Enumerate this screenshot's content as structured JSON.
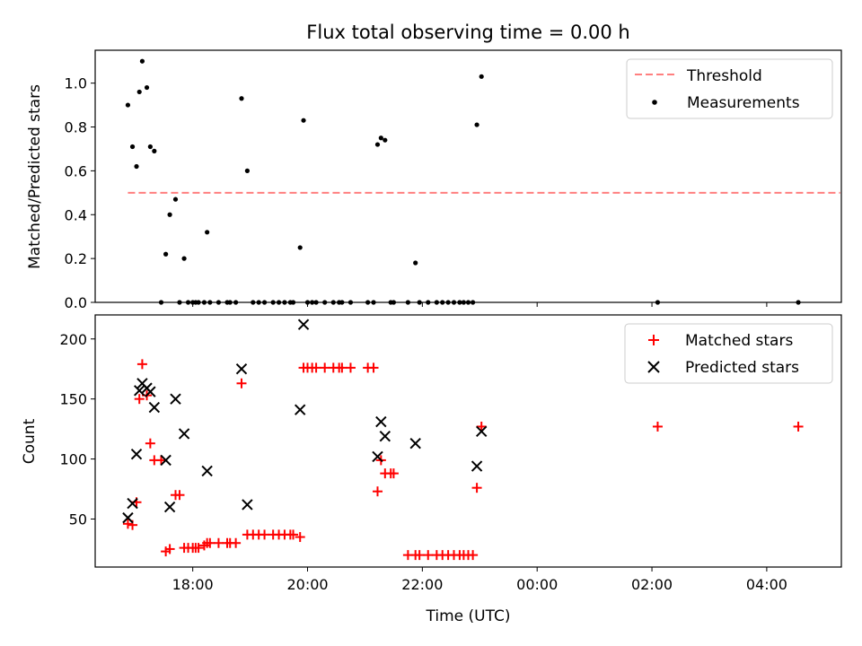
{
  "chart_data": [
    {
      "type": "scatter",
      "title": "Flux total observing time = 0.00 h",
      "xlabel": "",
      "ylabel": "Matched/Predicted stars",
      "x_unit": "hours of day (UTC), continuing past midnight",
      "xlim": [
        16.3,
        29.3
      ],
      "ylim": [
        0,
        1.15
      ],
      "yticks": [
        0.0,
        0.2,
        0.4,
        0.6,
        0.8,
        1.0
      ],
      "ytick_labels": [
        "0.0",
        "0.2",
        "0.4",
        "0.6",
        "0.8",
        "1.0"
      ],
      "legend_position": "top-right",
      "threshold": {
        "name": "Threshold",
        "color": "#ff7f7f",
        "style": "dashed",
        "y": 0.5,
        "x_range": [
          16.87,
          29.28
        ]
      },
      "series": [
        {
          "name": "Measurements",
          "color": "#000000",
          "marker": "dot",
          "points": [
            [
              16.87,
              0.9
            ],
            [
              16.95,
              0.71
            ],
            [
              17.02,
              0.62
            ],
            [
              17.07,
              0.96
            ],
            [
              17.12,
              1.1
            ],
            [
              17.2,
              0.98
            ],
            [
              17.26,
              0.71
            ],
            [
              17.33,
              0.69
            ],
            [
              17.45,
              0.0
            ],
            [
              17.53,
              0.22
            ],
            [
              17.6,
              0.4
            ],
            [
              17.7,
              0.47
            ],
            [
              17.77,
              0.0
            ],
            [
              17.85,
              0.2
            ],
            [
              17.92,
              0.0
            ],
            [
              18.0,
              0.0
            ],
            [
              18.05,
              0.0
            ],
            [
              18.1,
              0.0
            ],
            [
              18.2,
              0.0
            ],
            [
              18.25,
              0.32
            ],
            [
              18.3,
              0.0
            ],
            [
              18.45,
              0.0
            ],
            [
              18.6,
              0.0
            ],
            [
              18.65,
              0.0
            ],
            [
              18.75,
              0.0
            ],
            [
              18.85,
              0.93
            ],
            [
              18.95,
              0.6
            ],
            [
              19.05,
              0.0
            ],
            [
              19.15,
              0.0
            ],
            [
              19.25,
              0.0
            ],
            [
              19.4,
              0.0
            ],
            [
              19.5,
              0.0
            ],
            [
              19.6,
              0.0
            ],
            [
              19.7,
              0.0
            ],
            [
              19.75,
              0.0
            ],
            [
              19.87,
              0.25
            ],
            [
              19.93,
              0.83
            ],
            [
              20.0,
              0.0
            ],
            [
              20.08,
              0.0
            ],
            [
              20.15,
              0.0
            ],
            [
              20.3,
              0.0
            ],
            [
              20.45,
              0.0
            ],
            [
              20.55,
              0.0
            ],
            [
              20.6,
              0.0
            ],
            [
              20.75,
              0.0
            ],
            [
              21.05,
              0.0
            ],
            [
              21.15,
              0.0
            ],
            [
              21.22,
              0.72
            ],
            [
              21.28,
              0.75
            ],
            [
              21.35,
              0.74
            ],
            [
              21.45,
              0.0
            ],
            [
              21.5,
              0.0
            ],
            [
              21.75,
              0.0
            ],
            [
              21.88,
              0.18
            ],
            [
              21.95,
              0.0
            ],
            [
              22.1,
              0.0
            ],
            [
              22.25,
              0.0
            ],
            [
              22.35,
              0.0
            ],
            [
              22.45,
              0.0
            ],
            [
              22.55,
              0.0
            ],
            [
              22.65,
              0.0
            ],
            [
              22.72,
              0.0
            ],
            [
              22.8,
              0.0
            ],
            [
              22.88,
              0.0
            ],
            [
              22.95,
              0.81
            ],
            [
              23.03,
              1.03
            ],
            [
              26.1,
              0.0
            ],
            [
              28.55,
              0.0
            ]
          ]
        }
      ]
    },
    {
      "type": "scatter",
      "title": "",
      "xlabel": "Time (UTC)",
      "ylabel": "Count",
      "x_unit": "hours of day (UTC), continuing past midnight",
      "xlim": [
        16.3,
        29.3
      ],
      "ylim": [
        10,
        220
      ],
      "yticks": [
        50,
        100,
        150,
        200
      ],
      "ytick_labels": [
        "50",
        "100",
        "150",
        "200"
      ],
      "xticks": [
        18,
        20,
        22,
        24,
        26,
        28
      ],
      "xtick_labels": [
        "18:00",
        "20:00",
        "22:00",
        "00:00",
        "02:00",
        "04:00"
      ],
      "legend_position": "top-right",
      "series": [
        {
          "name": "Matched stars",
          "color": "#ff0000",
          "marker": "plus",
          "points": [
            [
              16.87,
              46
            ],
            [
              16.95,
              45
            ],
            [
              17.02,
              64
            ],
            [
              17.07,
              150
            ],
            [
              17.12,
              179
            ],
            [
              17.2,
              153
            ],
            [
              17.26,
              113
            ],
            [
              17.33,
              99
            ],
            [
              17.45,
              99
            ],
            [
              17.53,
              23
            ],
            [
              17.6,
              25
            ],
            [
              17.7,
              70
            ],
            [
              17.77,
              70
            ],
            [
              17.85,
              26
            ],
            [
              17.92,
              26
            ],
            [
              18.0,
              26
            ],
            [
              18.05,
              26
            ],
            [
              18.1,
              26
            ],
            [
              18.2,
              28
            ],
            [
              18.25,
              30
            ],
            [
              18.3,
              30
            ],
            [
              18.45,
              30
            ],
            [
              18.6,
              30
            ],
            [
              18.65,
              30
            ],
            [
              18.75,
              30
            ],
            [
              18.85,
              163
            ],
            [
              18.95,
              37
            ],
            [
              19.05,
              37
            ],
            [
              19.15,
              37
            ],
            [
              19.25,
              37
            ],
            [
              19.4,
              37
            ],
            [
              19.5,
              37
            ],
            [
              19.6,
              37
            ],
            [
              19.7,
              37
            ],
            [
              19.75,
              37
            ],
            [
              19.87,
              35
            ],
            [
              19.93,
              176
            ],
            [
              20.0,
              176
            ],
            [
              20.08,
              176
            ],
            [
              20.15,
              176
            ],
            [
              20.3,
              176
            ],
            [
              20.45,
              176
            ],
            [
              20.55,
              176
            ],
            [
              20.6,
              176
            ],
            [
              20.75,
              176
            ],
            [
              21.05,
              176
            ],
            [
              21.15,
              176
            ],
            [
              21.22,
              73
            ],
            [
              21.28,
              99
            ],
            [
              21.35,
              88
            ],
            [
              21.45,
              88
            ],
            [
              21.5,
              88
            ],
            [
              21.75,
              20
            ],
            [
              21.88,
              20
            ],
            [
              21.95,
              20
            ],
            [
              22.1,
              20
            ],
            [
              22.25,
              20
            ],
            [
              22.35,
              20
            ],
            [
              22.45,
              20
            ],
            [
              22.55,
              20
            ],
            [
              22.65,
              20
            ],
            [
              22.72,
              20
            ],
            [
              22.8,
              20
            ],
            [
              22.88,
              20
            ],
            [
              22.95,
              76
            ],
            [
              23.03,
              127
            ],
            [
              26.1,
              127
            ],
            [
              28.55,
              127
            ]
          ]
        },
        {
          "name": "Predicted stars",
          "color": "#000000",
          "marker": "x",
          "points": [
            [
              16.87,
              51
            ],
            [
              16.95,
              63
            ],
            [
              17.02,
              104
            ],
            [
              17.07,
              157
            ],
            [
              17.12,
              163
            ],
            [
              17.2,
              159
            ],
            [
              17.26,
              156
            ],
            [
              17.33,
              143
            ],
            [
              17.53,
              99
            ],
            [
              17.6,
              60
            ],
            [
              17.7,
              150
            ],
            [
              17.85,
              121
            ],
            [
              18.25,
              90
            ],
            [
              18.85,
              175
            ],
            [
              18.95,
              62
            ],
            [
              19.87,
              141
            ],
            [
              19.93,
              212
            ],
            [
              21.22,
              102
            ],
            [
              21.28,
              131
            ],
            [
              21.35,
              119
            ],
            [
              21.88,
              113
            ],
            [
              22.95,
              94
            ],
            [
              23.03,
              123
            ]
          ]
        }
      ]
    }
  ]
}
